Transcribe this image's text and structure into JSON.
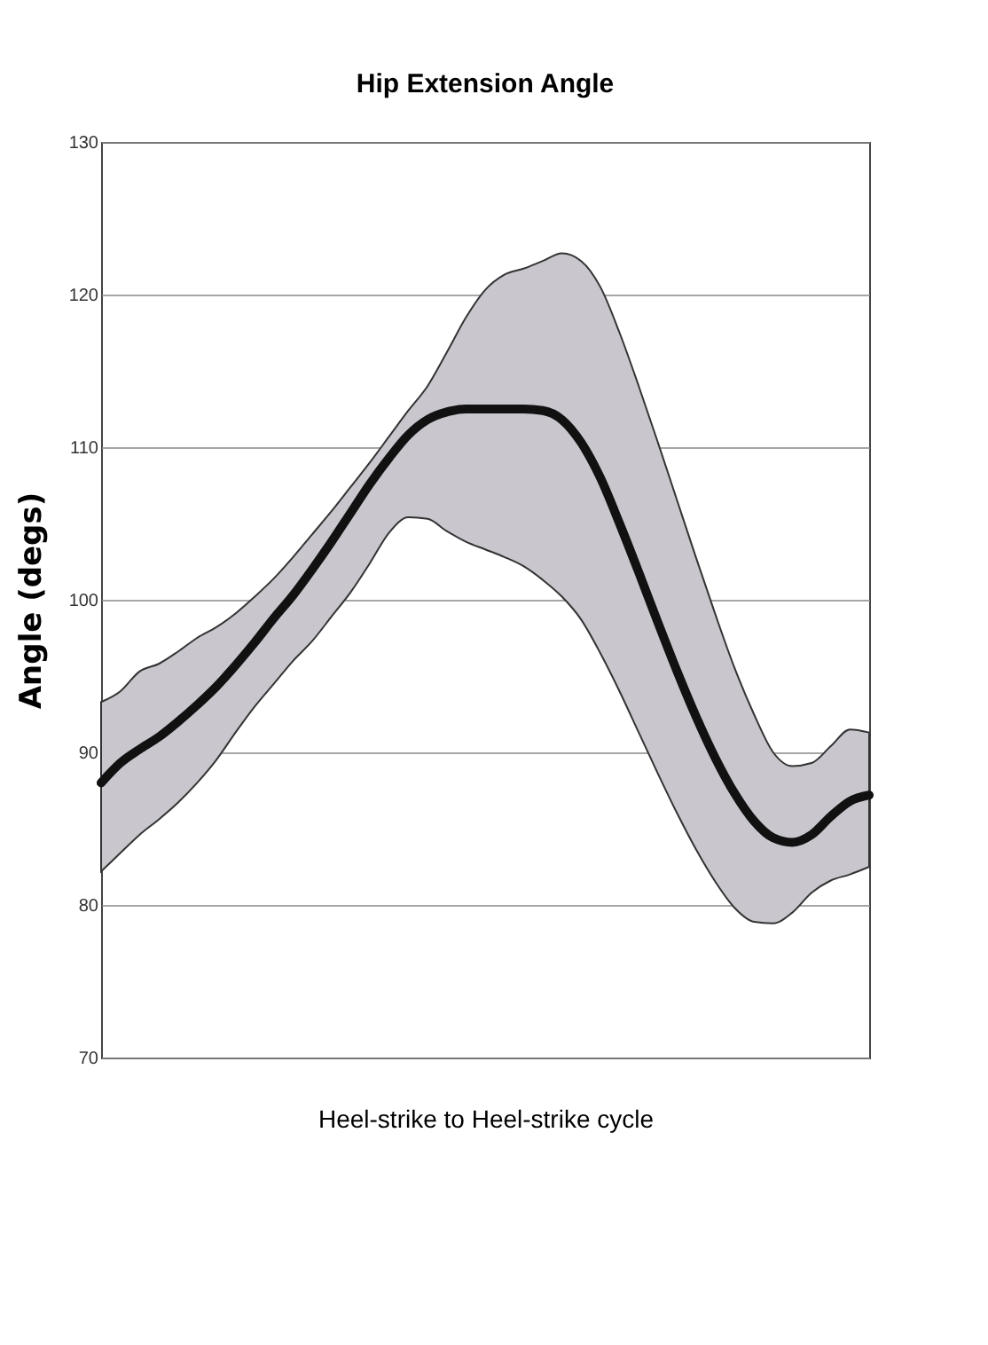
{
  "chart_data": {
    "type": "line",
    "title": "Hip Extension Angle",
    "xlabel": "Heel-strike to Heel-strike cycle",
    "ylabel": "Angle (degs)",
    "categories": [
      null,
      null,
      null,
      null,
      null,
      null,
      null,
      null,
      null,
      null,
      null,
      null,
      null,
      null,
      null,
      null,
      null,
      null,
      null,
      null,
      null,
      null,
      null,
      null,
      null,
      null,
      null,
      null,
      null,
      null,
      null,
      null,
      null,
      null,
      null,
      null,
      null,
      null,
      null,
      null,
      null
    ],
    "series": [
      {
        "color": "#111111",
        "values": [
          88,
          89.3,
          90.2,
          91,
          92,
          93.1,
          94.3,
          95.7,
          97.2,
          98.8,
          100.3,
          102,
          103.8,
          105.7,
          107.6,
          109.3,
          110.8,
          111.8,
          112.3,
          112.5,
          112.5,
          112.5,
          112.5,
          112.4,
          111.8,
          110.3,
          108,
          105,
          101.8,
          98.5,
          95.3,
          92.3,
          89.6,
          87.3,
          85.5,
          84.4,
          84.1,
          84.6,
          85.8,
          86.8,
          87.2
        ],
        "upper": [
          93.3,
          94,
          95.3,
          95.8,
          96.6,
          97.5,
          98.2,
          99.1,
          100.2,
          101.4,
          102.8,
          104.3,
          105.8,
          107.4,
          109,
          110.7,
          112.4,
          114,
          116.2,
          118.5,
          120.3,
          121.3,
          121.7,
          122.2,
          122.7,
          122.2,
          120.5,
          117.5,
          114,
          110.3,
          106.5,
          102.7,
          99,
          95.5,
          92.5,
          90,
          89.1,
          89.3,
          90.4,
          91.5,
          91.3
        ],
        "lower": [
          82.2,
          83.4,
          84.6,
          85.6,
          86.7,
          88,
          89.5,
          91.3,
          93,
          94.5,
          96,
          97.3,
          98.9,
          100.5,
          102.4,
          104.4,
          105.4,
          105.3,
          104.5,
          103.8,
          103.3,
          102.8,
          102.2,
          101.3,
          100.2,
          98.7,
          96.5,
          94,
          91.3,
          88.6,
          86,
          83.6,
          81.5,
          79.8,
          78.9,
          78.8,
          79.5,
          80.8,
          81.6,
          82,
          82.5
        ]
      }
    ],
    "ylim": [
      70,
      130
    ],
    "yticks": [
      70,
      80,
      90,
      100,
      110,
      120,
      130
    ],
    "grid": "y",
    "tick_labels": "y",
    "line_style": "solid"
  }
}
